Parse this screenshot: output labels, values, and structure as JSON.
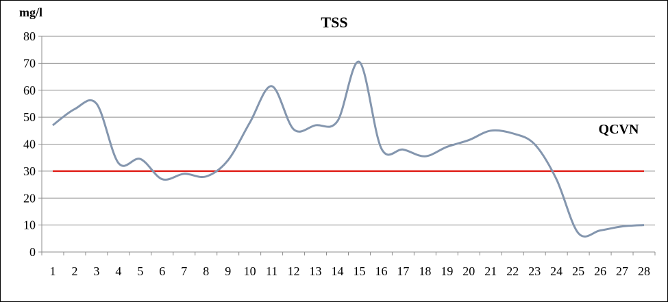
{
  "chart_data": {
    "type": "line",
    "title": "TSS",
    "ylabel": "mg/l",
    "xlabel": "",
    "ylim": [
      0,
      80
    ],
    "yticks": [
      0,
      10,
      20,
      30,
      40,
      50,
      60,
      70,
      80
    ],
    "grid": "horizontal",
    "categories": [
      "1",
      "2",
      "3",
      "4",
      "5",
      "6",
      "7",
      "8",
      "9",
      "10",
      "11",
      "12",
      "13",
      "14",
      "15",
      "16",
      "17",
      "18",
      "19",
      "20",
      "21",
      "22",
      "23",
      "24",
      "25",
      "26",
      "27",
      "28"
    ],
    "series": [
      {
        "color": "#8496AE",
        "values": [
          47,
          53,
          55,
          33,
          34.5,
          27,
          29,
          28,
          34,
          48,
          61.5,
          45.5,
          47,
          48.5,
          70.5,
          38.5,
          38,
          35.5,
          39,
          41.5,
          45,
          44,
          40,
          27,
          7,
          8,
          9.5,
          10
        ]
      }
    ],
    "reference_lines": [
      {
        "label": "QCVN",
        "value": 30,
        "color": "#E0201A"
      }
    ]
  }
}
